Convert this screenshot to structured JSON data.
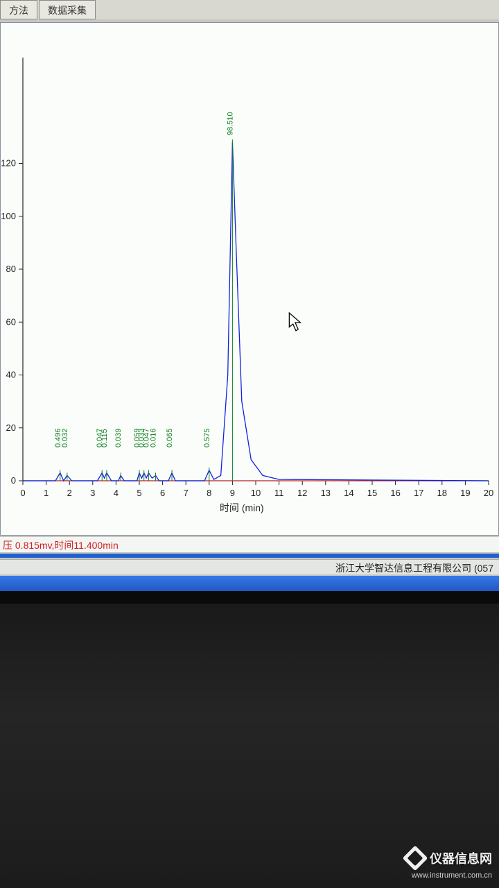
{
  "tabs": {
    "methods": "方法",
    "data_acq": "数据采集"
  },
  "chart": {
    "type": "line",
    "xlabel": "时间 (min)",
    "xlim": [
      0,
      20
    ],
    "xtick_step": 1,
    "ylim": [
      0,
      160
    ],
    "ytick_step": 20,
    "y_ticks": [
      0,
      20,
      40,
      60,
      80,
      100,
      120
    ],
    "line_color": "#1020e0",
    "baseline_color": "#e02020",
    "peak_label_color": "#108020",
    "background_color": "#fbfdfb",
    "label_fontsize": 14,
    "tick_fontsize": 13,
    "peak_label_fontsize": 11,
    "peaks": [
      {
        "t": 1.6,
        "h": 3,
        "label": "0.496"
      },
      {
        "t": 1.9,
        "h": 2,
        "label": "0.032"
      },
      {
        "t": 3.4,
        "h": 3,
        "label": "0.047"
      },
      {
        "t": 3.6,
        "h": 3,
        "label": "0.115"
      },
      {
        "t": 4.2,
        "h": 2,
        "label": "0.039"
      },
      {
        "t": 5.0,
        "h": 3,
        "label": "0.059"
      },
      {
        "t": 5.2,
        "h": 3,
        "label": "0.033"
      },
      {
        "t": 5.4,
        "h": 3,
        "label": "0.047"
      },
      {
        "t": 5.7,
        "h": 2,
        "label": "0.016"
      },
      {
        "t": 6.4,
        "h": 3,
        "label": "0.065"
      },
      {
        "t": 8.0,
        "h": 4,
        "label": "0.575"
      },
      {
        "t": 9.0,
        "h": 128,
        "label": "98.510"
      }
    ],
    "main_curve": [
      {
        "t": 0.0,
        "v": 0
      },
      {
        "t": 1.4,
        "v": 0
      },
      {
        "t": 1.6,
        "v": 3
      },
      {
        "t": 1.75,
        "v": 0
      },
      {
        "t": 1.9,
        "v": 2
      },
      {
        "t": 2.1,
        "v": 0
      },
      {
        "t": 3.2,
        "v": 0
      },
      {
        "t": 3.4,
        "v": 3
      },
      {
        "t": 3.5,
        "v": 1
      },
      {
        "t": 3.6,
        "v": 3
      },
      {
        "t": 3.8,
        "v": 0
      },
      {
        "t": 4.1,
        "v": 0
      },
      {
        "t": 4.2,
        "v": 2
      },
      {
        "t": 4.35,
        "v": 0
      },
      {
        "t": 4.9,
        "v": 0
      },
      {
        "t": 5.0,
        "v": 3
      },
      {
        "t": 5.1,
        "v": 1
      },
      {
        "t": 5.2,
        "v": 3
      },
      {
        "t": 5.3,
        "v": 1
      },
      {
        "t": 5.4,
        "v": 3
      },
      {
        "t": 5.55,
        "v": 1
      },
      {
        "t": 5.7,
        "v": 2
      },
      {
        "t": 5.85,
        "v": 0
      },
      {
        "t": 6.25,
        "v": 0
      },
      {
        "t": 6.4,
        "v": 3
      },
      {
        "t": 6.55,
        "v": 0
      },
      {
        "t": 7.8,
        "v": 0
      },
      {
        "t": 8.0,
        "v": 4
      },
      {
        "t": 8.2,
        "v": 0.5
      },
      {
        "t": 8.5,
        "v": 2
      },
      {
        "t": 8.8,
        "v": 40
      },
      {
        "t": 9.0,
        "v": 128
      },
      {
        "t": 9.15,
        "v": 90
      },
      {
        "t": 9.4,
        "v": 30
      },
      {
        "t": 9.8,
        "v": 8
      },
      {
        "t": 10.3,
        "v": 2
      },
      {
        "t": 11.0,
        "v": 0.5
      },
      {
        "t": 20.0,
        "v": 0
      }
    ]
  },
  "status": {
    "text": "压 0.815mv,时间11.400min"
  },
  "footer": {
    "company": "浙江大学智达信息工程有限公司 (057"
  },
  "watermark": {
    "brand": "仪器信息网",
    "url": "www.instrument.com.cn"
  }
}
